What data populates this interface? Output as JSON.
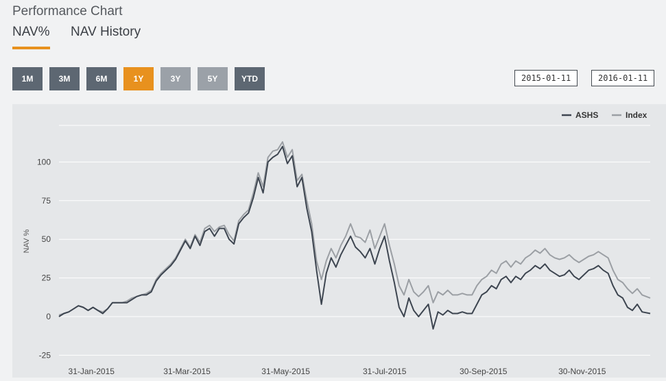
{
  "title": "Performance Chart",
  "tabs": [
    {
      "label": "NAV%",
      "active": true
    },
    {
      "label": "NAV History",
      "active": false
    }
  ],
  "ranges": [
    {
      "label": "1M",
      "state": "normal"
    },
    {
      "label": "3M",
      "state": "normal"
    },
    {
      "label": "6M",
      "state": "normal"
    },
    {
      "label": "1Y",
      "state": "active"
    },
    {
      "label": "3Y",
      "state": "disabled"
    },
    {
      "label": "5Y",
      "state": "disabled"
    },
    {
      "label": "YTD",
      "state": "normal"
    }
  ],
  "dates": {
    "from": "2015-01-11",
    "to": "2016-01-11"
  },
  "colors": {
    "accent": "#e8911e",
    "button": "#5d6772",
    "asbs": "#3d4550",
    "index": "#9b9fa4"
  },
  "chart_data": {
    "type": "line",
    "ylabel": "NAV %",
    "xlabel": "",
    "ylim": [
      -25,
      120
    ],
    "yticks": [
      -25,
      0,
      25,
      50,
      75,
      100
    ],
    "xlim": [
      "2015-01-11",
      "2016-01-11"
    ],
    "xticks": [
      {
        "date": "2015-01-31",
        "label": "31-Jan-2015"
      },
      {
        "date": "2015-03-31",
        "label": "31-Mar-2015"
      },
      {
        "date": "2015-05-31",
        "label": "31-May-2015"
      },
      {
        "date": "2015-07-31",
        "label": "31-Jul-2015"
      },
      {
        "date": "2015-09-30",
        "label": "30-Sep-2015"
      },
      {
        "date": "2015-11-30",
        "label": "30-Nov-2015"
      }
    ],
    "legend_position": "top-right",
    "series": [
      {
        "name": "ASHS",
        "points": [
          [
            "2015-01-11",
            0
          ],
          [
            "2015-01-14",
            2
          ],
          [
            "2015-01-17",
            3
          ],
          [
            "2015-01-20",
            5
          ],
          [
            "2015-01-23",
            7
          ],
          [
            "2015-01-26",
            6
          ],
          [
            "2015-01-29",
            4
          ],
          [
            "2015-02-01",
            6
          ],
          [
            "2015-02-04",
            4
          ],
          [
            "2015-02-07",
            2
          ],
          [
            "2015-02-10",
            5
          ],
          [
            "2015-02-13",
            9
          ],
          [
            "2015-02-16",
            9
          ],
          [
            "2015-02-19",
            9
          ],
          [
            "2015-02-22",
            9
          ],
          [
            "2015-02-25",
            11
          ],
          [
            "2015-02-28",
            13
          ],
          [
            "2015-03-03",
            14
          ],
          [
            "2015-03-06",
            14
          ],
          [
            "2015-03-09",
            16
          ],
          [
            "2015-03-12",
            23
          ],
          [
            "2015-03-15",
            27
          ],
          [
            "2015-03-18",
            30
          ],
          [
            "2015-03-21",
            33
          ],
          [
            "2015-03-24",
            37
          ],
          [
            "2015-03-27",
            43
          ],
          [
            "2015-03-30",
            49
          ],
          [
            "2015-04-02",
            44
          ],
          [
            "2015-04-05",
            52
          ],
          [
            "2015-04-08",
            46
          ],
          [
            "2015-04-11",
            55
          ],
          [
            "2015-04-14",
            57
          ],
          [
            "2015-04-17",
            52
          ],
          [
            "2015-04-20",
            57
          ],
          [
            "2015-04-23",
            57
          ],
          [
            "2015-04-26",
            50
          ],
          [
            "2015-04-29",
            47
          ],
          [
            "2015-05-02",
            60
          ],
          [
            "2015-05-05",
            64
          ],
          [
            "2015-05-08",
            67
          ],
          [
            "2015-05-11",
            77
          ],
          [
            "2015-05-14",
            90
          ],
          [
            "2015-05-17",
            80
          ],
          [
            "2015-05-20",
            100
          ],
          [
            "2015-05-23",
            103
          ],
          [
            "2015-05-26",
            105
          ],
          [
            "2015-05-29",
            110
          ],
          [
            "2015-06-01",
            99
          ],
          [
            "2015-06-04",
            104
          ],
          [
            "2015-06-07",
            84
          ],
          [
            "2015-06-10",
            90
          ],
          [
            "2015-06-13",
            70
          ],
          [
            "2015-06-16",
            55
          ],
          [
            "2015-06-19",
            30
          ],
          [
            "2015-06-22",
            8
          ],
          [
            "2015-06-25",
            28
          ],
          [
            "2015-06-28",
            38
          ],
          [
            "2015-07-01",
            32
          ],
          [
            "2015-07-04",
            40
          ],
          [
            "2015-07-07",
            46
          ],
          [
            "2015-07-10",
            52
          ],
          [
            "2015-07-13",
            45
          ],
          [
            "2015-07-16",
            42
          ],
          [
            "2015-07-19",
            38
          ],
          [
            "2015-07-22",
            44
          ],
          [
            "2015-07-25",
            34
          ],
          [
            "2015-07-28",
            44
          ],
          [
            "2015-07-31",
            52
          ],
          [
            "2015-08-03",
            36
          ],
          [
            "2015-08-06",
            22
          ],
          [
            "2015-08-09",
            6
          ],
          [
            "2015-08-12",
            0
          ],
          [
            "2015-08-15",
            12
          ],
          [
            "2015-08-18",
            4
          ],
          [
            "2015-08-21",
            0
          ],
          [
            "2015-08-24",
            4
          ],
          [
            "2015-08-27",
            8
          ],
          [
            "2015-08-30",
            -8
          ],
          [
            "2015-09-02",
            3
          ],
          [
            "2015-09-05",
            1
          ],
          [
            "2015-09-08",
            4
          ],
          [
            "2015-09-11",
            2
          ],
          [
            "2015-09-14",
            2
          ],
          [
            "2015-09-17",
            3
          ],
          [
            "2015-09-20",
            2
          ],
          [
            "2015-09-23",
            2
          ],
          [
            "2015-09-26",
            8
          ],
          [
            "2015-09-29",
            14
          ],
          [
            "2015-10-02",
            16
          ],
          [
            "2015-10-05",
            20
          ],
          [
            "2015-10-08",
            18
          ],
          [
            "2015-10-11",
            24
          ],
          [
            "2015-10-14",
            26
          ],
          [
            "2015-10-17",
            22
          ],
          [
            "2015-10-20",
            26
          ],
          [
            "2015-10-23",
            24
          ],
          [
            "2015-10-26",
            28
          ],
          [
            "2015-10-29",
            30
          ],
          [
            "2015-11-01",
            33
          ],
          [
            "2015-11-04",
            31
          ],
          [
            "2015-11-07",
            34
          ],
          [
            "2015-11-10",
            30
          ],
          [
            "2015-11-13",
            28
          ],
          [
            "2015-11-16",
            26
          ],
          [
            "2015-11-19",
            27
          ],
          [
            "2015-11-22",
            30
          ],
          [
            "2015-11-25",
            26
          ],
          [
            "2015-11-28",
            24
          ],
          [
            "2015-12-01",
            27
          ],
          [
            "2015-12-04",
            30
          ],
          [
            "2015-12-07",
            31
          ],
          [
            "2015-12-10",
            33
          ],
          [
            "2015-12-13",
            30
          ],
          [
            "2015-12-16",
            28
          ],
          [
            "2015-12-19",
            20
          ],
          [
            "2015-12-22",
            14
          ],
          [
            "2015-12-25",
            12
          ],
          [
            "2015-12-28",
            6
          ],
          [
            "2015-12-31",
            4
          ],
          [
            "2016-01-03",
            8
          ],
          [
            "2016-01-06",
            3
          ],
          [
            "2016-01-11",
            2
          ]
        ]
      },
      {
        "name": "Index",
        "points": [
          [
            "2015-01-11",
            1
          ],
          [
            "2015-01-14",
            2
          ],
          [
            "2015-01-17",
            3
          ],
          [
            "2015-01-20",
            5
          ],
          [
            "2015-01-23",
            7
          ],
          [
            "2015-01-26",
            6
          ],
          [
            "2015-01-29",
            4
          ],
          [
            "2015-02-01",
            6
          ],
          [
            "2015-02-04",
            4
          ],
          [
            "2015-02-07",
            3
          ],
          [
            "2015-02-10",
            5
          ],
          [
            "2015-02-13",
            9
          ],
          [
            "2015-02-16",
            9
          ],
          [
            "2015-02-19",
            9
          ],
          [
            "2015-02-22",
            10
          ],
          [
            "2015-02-25",
            12
          ],
          [
            "2015-02-28",
            13
          ],
          [
            "2015-03-03",
            14
          ],
          [
            "2015-03-06",
            15
          ],
          [
            "2015-03-09",
            17
          ],
          [
            "2015-03-12",
            24
          ],
          [
            "2015-03-15",
            28
          ],
          [
            "2015-03-18",
            31
          ],
          [
            "2015-03-21",
            34
          ],
          [
            "2015-03-24",
            38
          ],
          [
            "2015-03-27",
            44
          ],
          [
            "2015-03-30",
            50
          ],
          [
            "2015-04-02",
            45
          ],
          [
            "2015-04-05",
            53
          ],
          [
            "2015-04-08",
            48
          ],
          [
            "2015-04-11",
            57
          ],
          [
            "2015-04-14",
            59
          ],
          [
            "2015-04-17",
            55
          ],
          [
            "2015-04-20",
            58
          ],
          [
            "2015-04-23",
            59
          ],
          [
            "2015-04-26",
            53
          ],
          [
            "2015-04-29",
            49
          ],
          [
            "2015-05-02",
            62
          ],
          [
            "2015-05-05",
            66
          ],
          [
            "2015-05-08",
            69
          ],
          [
            "2015-05-11",
            80
          ],
          [
            "2015-05-14",
            93
          ],
          [
            "2015-05-17",
            84
          ],
          [
            "2015-05-20",
            103
          ],
          [
            "2015-05-23",
            107
          ],
          [
            "2015-05-26",
            108
          ],
          [
            "2015-05-29",
            113
          ],
          [
            "2015-06-01",
            103
          ],
          [
            "2015-06-04",
            108
          ],
          [
            "2015-06-07",
            88
          ],
          [
            "2015-06-10",
            92
          ],
          [
            "2015-06-13",
            75
          ],
          [
            "2015-06-16",
            60
          ],
          [
            "2015-06-19",
            36
          ],
          [
            "2015-06-22",
            24
          ],
          [
            "2015-06-25",
            36
          ],
          [
            "2015-06-28",
            44
          ],
          [
            "2015-07-01",
            38
          ],
          [
            "2015-07-04",
            46
          ],
          [
            "2015-07-07",
            52
          ],
          [
            "2015-07-10",
            60
          ],
          [
            "2015-07-13",
            52
          ],
          [
            "2015-07-16",
            51
          ],
          [
            "2015-07-19",
            48
          ],
          [
            "2015-07-22",
            56
          ],
          [
            "2015-07-25",
            44
          ],
          [
            "2015-07-28",
            52
          ],
          [
            "2015-07-31",
            60
          ],
          [
            "2015-08-03",
            46
          ],
          [
            "2015-08-06",
            34
          ],
          [
            "2015-08-09",
            20
          ],
          [
            "2015-08-12",
            14
          ],
          [
            "2015-08-15",
            24
          ],
          [
            "2015-08-18",
            16
          ],
          [
            "2015-08-21",
            13
          ],
          [
            "2015-08-24",
            16
          ],
          [
            "2015-08-27",
            20
          ],
          [
            "2015-08-30",
            9
          ],
          [
            "2015-09-02",
            16
          ],
          [
            "2015-09-05",
            14
          ],
          [
            "2015-09-08",
            17
          ],
          [
            "2015-09-11",
            14
          ],
          [
            "2015-09-14",
            14
          ],
          [
            "2015-09-17",
            15
          ],
          [
            "2015-09-20",
            14
          ],
          [
            "2015-09-23",
            14
          ],
          [
            "2015-09-26",
            20
          ],
          [
            "2015-09-29",
            24
          ],
          [
            "2015-10-02",
            26
          ],
          [
            "2015-10-05",
            30
          ],
          [
            "2015-10-08",
            28
          ],
          [
            "2015-10-11",
            34
          ],
          [
            "2015-10-14",
            36
          ],
          [
            "2015-10-17",
            32
          ],
          [
            "2015-10-20",
            36
          ],
          [
            "2015-10-23",
            34
          ],
          [
            "2015-10-26",
            38
          ],
          [
            "2015-10-29",
            40
          ],
          [
            "2015-11-01",
            43
          ],
          [
            "2015-11-04",
            41
          ],
          [
            "2015-11-07",
            44
          ],
          [
            "2015-11-10",
            40
          ],
          [
            "2015-11-13",
            38
          ],
          [
            "2015-11-16",
            37
          ],
          [
            "2015-11-19",
            38
          ],
          [
            "2015-11-22",
            40
          ],
          [
            "2015-11-25",
            37
          ],
          [
            "2015-11-28",
            35
          ],
          [
            "2015-12-01",
            37
          ],
          [
            "2015-12-04",
            39
          ],
          [
            "2015-12-07",
            40
          ],
          [
            "2015-12-10",
            42
          ],
          [
            "2015-12-13",
            40
          ],
          [
            "2015-12-16",
            38
          ],
          [
            "2015-12-19",
            30
          ],
          [
            "2015-12-22",
            24
          ],
          [
            "2015-12-25",
            22
          ],
          [
            "2015-12-28",
            18
          ],
          [
            "2015-12-31",
            15
          ],
          [
            "2016-01-03",
            18
          ],
          [
            "2016-01-06",
            14
          ],
          [
            "2016-01-11",
            12
          ]
        ]
      }
    ]
  }
}
